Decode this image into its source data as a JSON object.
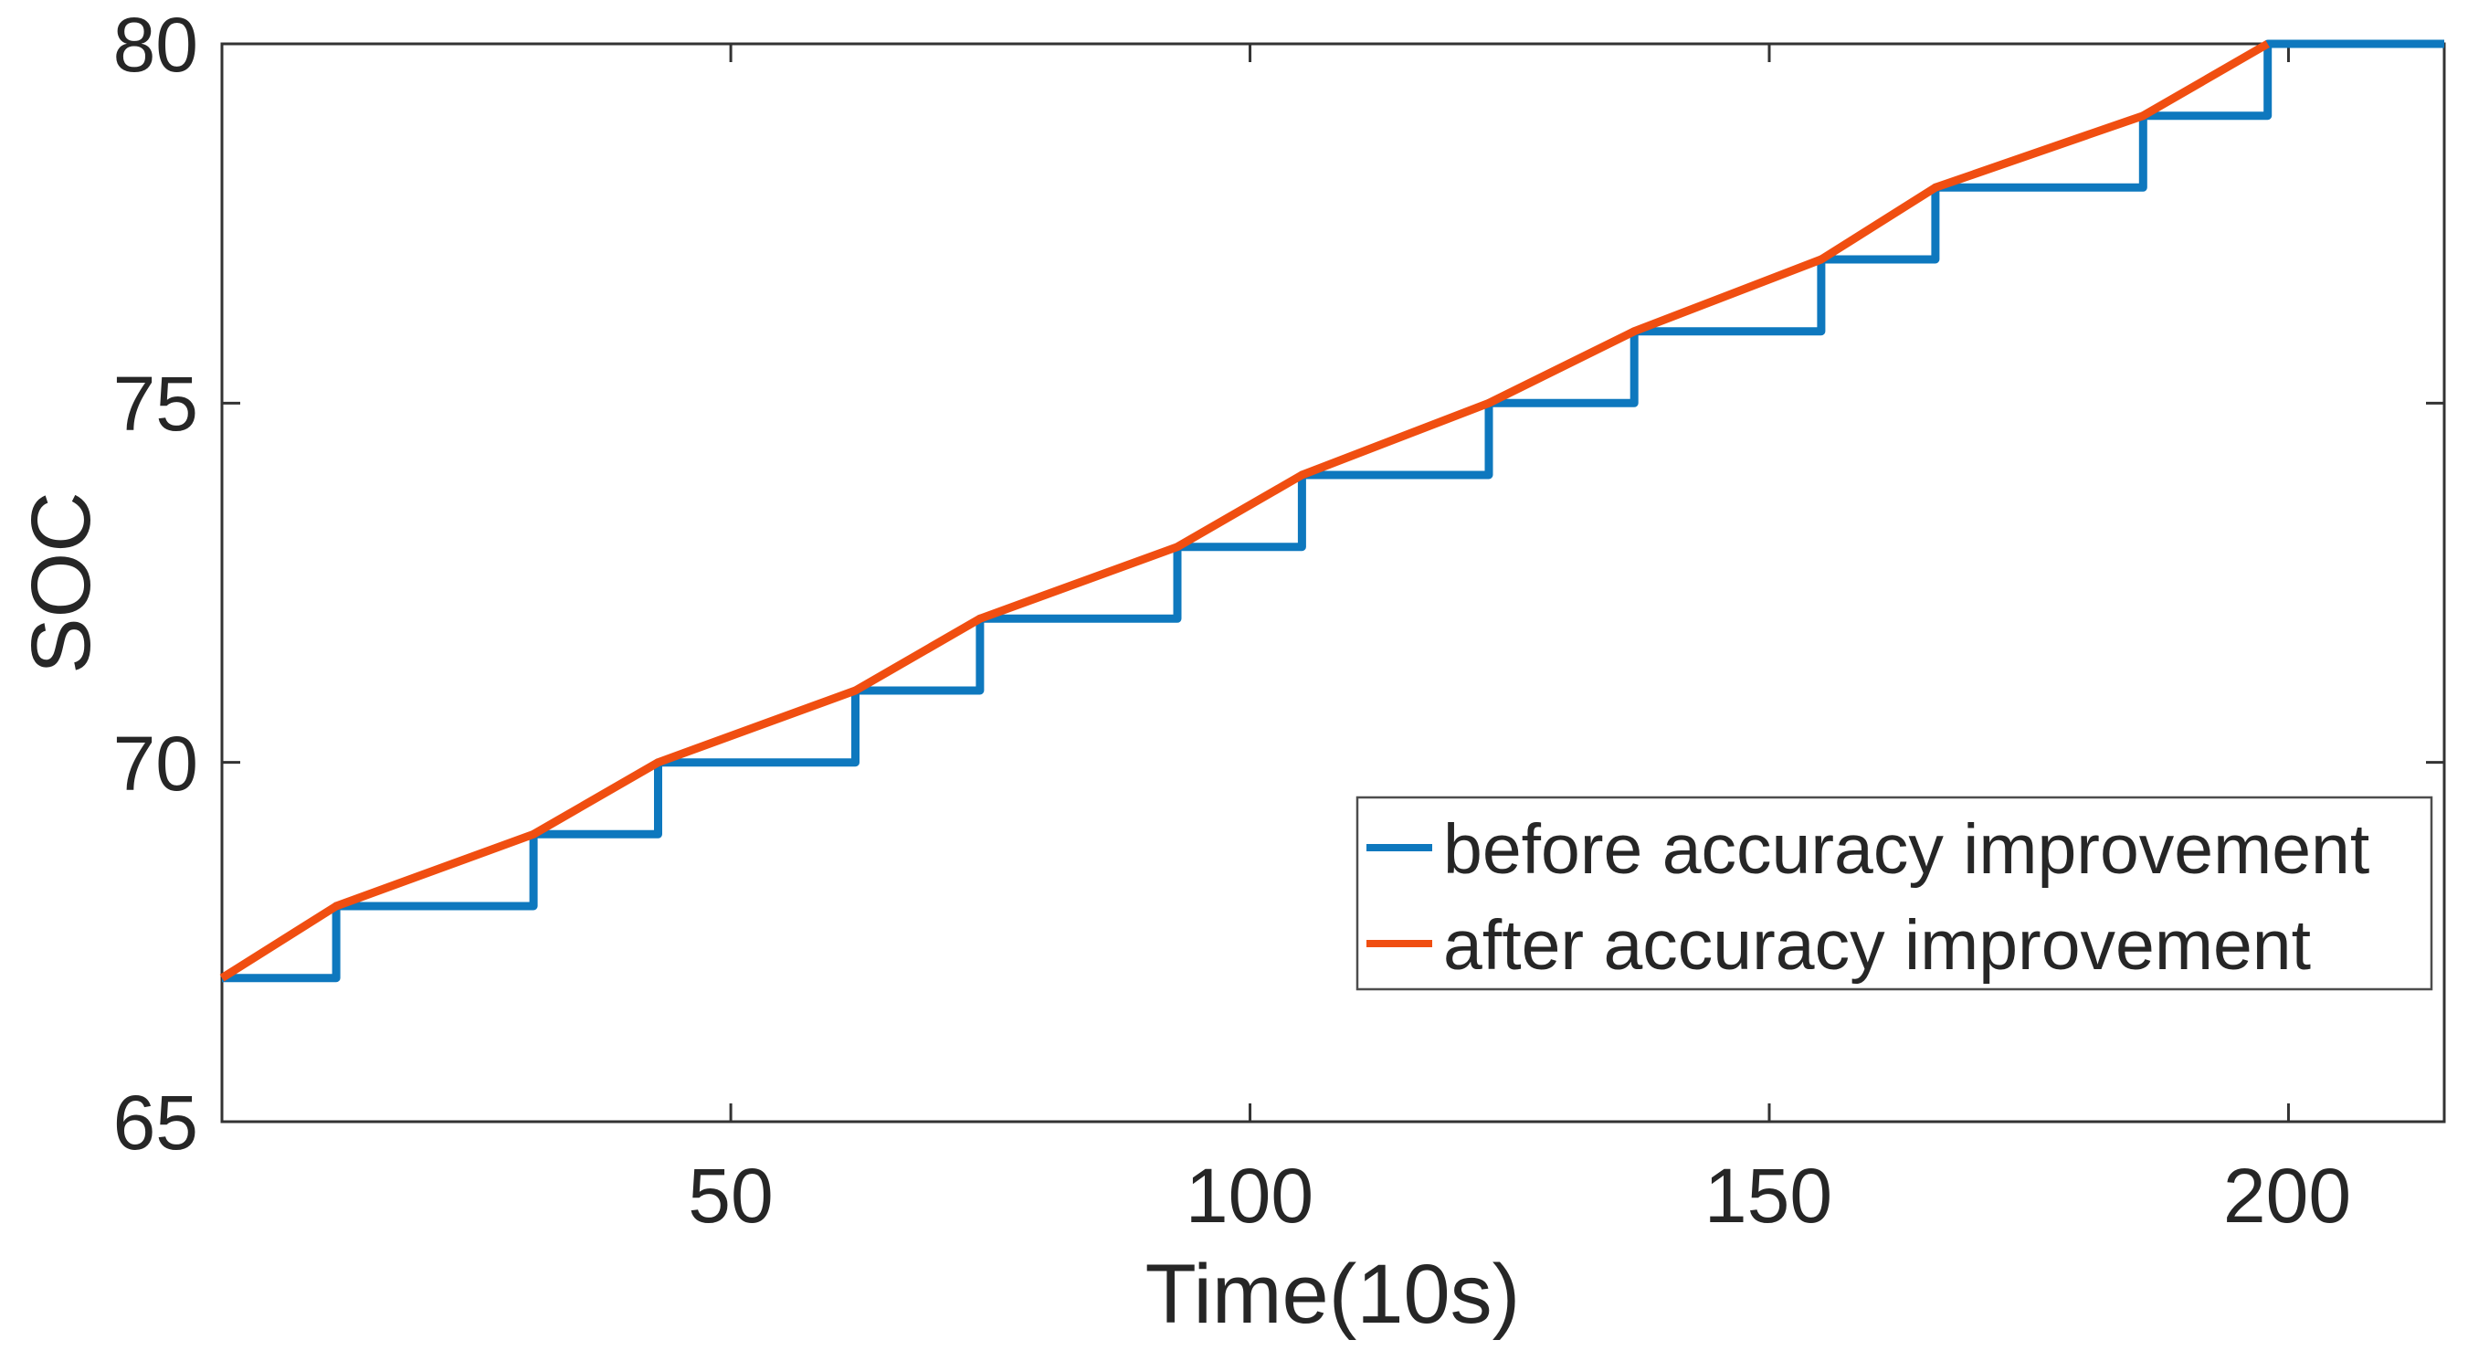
{
  "chart_data": {
    "type": "line",
    "title": "",
    "xlabel": "Time(10s)",
    "ylabel": "SOC",
    "xlim": [
      1,
      215
    ],
    "ylim": [
      65,
      80
    ],
    "xticks": [
      "50",
      "100",
      "150",
      "200"
    ],
    "yticks": [
      "65",
      "70",
      "75",
      "80"
    ],
    "grid": false,
    "box": true,
    "tick_direction": "in",
    "axis_color": "#333333",
    "text_color": "#262626",
    "legend": {
      "position": "middle-right",
      "border_color": "#4d4d4d",
      "background": "#ffffff"
    },
    "series": [
      {
        "name": "before accuracy improvement",
        "color": "#0e78be",
        "style": "staircase",
        "points": [
          [
            1,
            67
          ],
          [
            12,
            68
          ],
          [
            31,
            69
          ],
          [
            43,
            70
          ],
          [
            62,
            71
          ],
          [
            74,
            72
          ],
          [
            93,
            73
          ],
          [
            105,
            74
          ],
          [
            123,
            75
          ],
          [
            137,
            76
          ],
          [
            155,
            77
          ],
          [
            166,
            78
          ],
          [
            186,
            79
          ],
          [
            198,
            80
          ],
          [
            215,
            80
          ]
        ]
      },
      {
        "name": "after accuracy improvement",
        "color": "#f04e11",
        "style": "linear",
        "points": [
          [
            1,
            67
          ],
          [
            12,
            68
          ],
          [
            31,
            69
          ],
          [
            43,
            70
          ],
          [
            62,
            71
          ],
          [
            74,
            72
          ],
          [
            93,
            73
          ],
          [
            105,
            74
          ],
          [
            123,
            75
          ],
          [
            137,
            76
          ],
          [
            155,
            77
          ],
          [
            166,
            78
          ],
          [
            186,
            79
          ],
          [
            198,
            80
          ]
        ]
      }
    ]
  }
}
